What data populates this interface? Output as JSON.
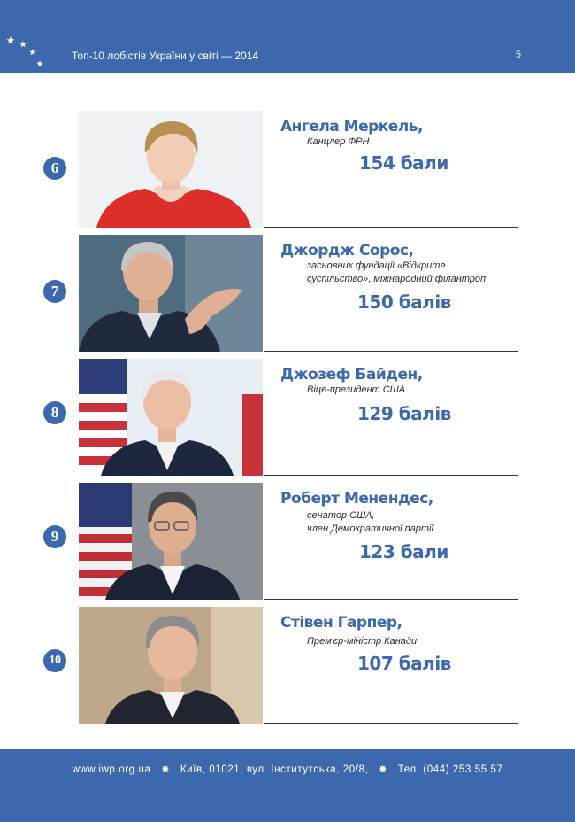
{
  "header": {
    "title": "Топ-10 лобістів України у світі — 2014",
    "page_number": "5"
  },
  "entries": [
    {
      "rank": "6",
      "name": "Ангела Меркель,",
      "role_lines": [
        "Канцлер ФРН"
      ],
      "score": "154 бали"
    },
    {
      "rank": "7",
      "name": "Джордж Сорос,",
      "role_lines": [
        "засновник фундації «Відкрите",
        "суспільство», міжнародний філантроп"
      ],
      "score": "150 балів"
    },
    {
      "rank": "8",
      "name": "Джозеф Байден,",
      "role_lines": [
        "Віце-президент США"
      ],
      "score": "129 балів"
    },
    {
      "rank": "9",
      "name": "Роберт Менендес,",
      "role_lines": [
        "сенатор США,",
        "член Демократичної партії"
      ],
      "score": "123 бали"
    },
    {
      "rank": "10",
      "name": "Стівен Гарпер,",
      "role_lines": [
        "Прем'єр-міністр Канади"
      ],
      "score": "107 балів"
    }
  ],
  "footer": {
    "website": "www.iwp.org.ua",
    "address": "Київ, 01021, вул. Інститутська, 20/8,",
    "phone": "Тел. (044) 253 55 57"
  },
  "colors": {
    "brand_blue": "#3c68ae",
    "text": "#2b2b2b"
  },
  "icons": [
    "star-icon",
    "rank-badge-icon",
    "footer-bullet-icon"
  ]
}
